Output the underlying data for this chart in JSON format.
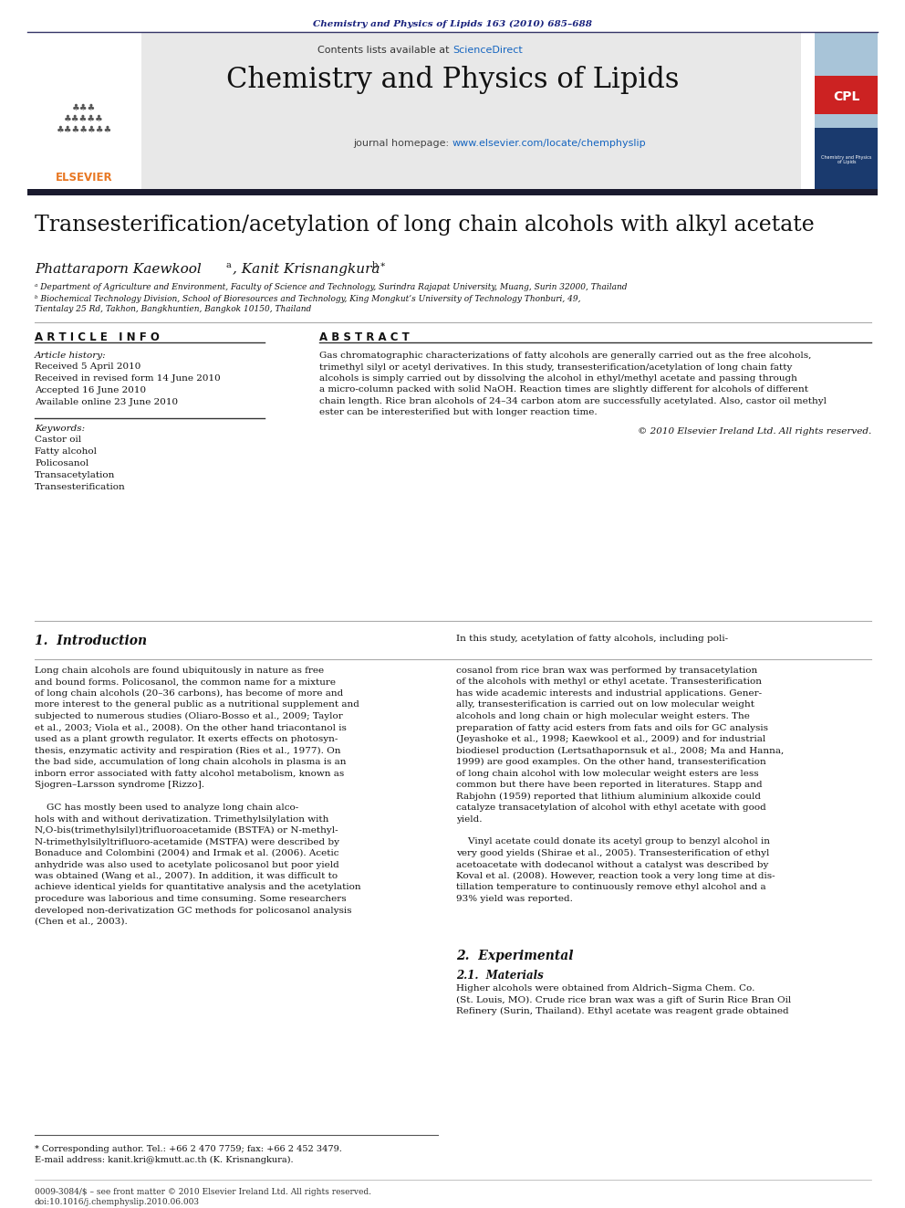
{
  "bg_color": "#ffffff",
  "page_width": 9.92,
  "page_height": 13.23,
  "journal_citation": "Chemistry and Physics of Lipids 163 (2010) 685–688",
  "journal_citation_color": "#1a237e",
  "sciencedirect_color": "#1565c0",
  "journal_name": "Chemistry and Physics of Lipids",
  "journal_url_color": "#1565c0",
  "paper_title": "Transesterification/acetylation of long chain alcohols with alkyl acetate",
  "affil_a": "ᵃ Department of Agriculture and Environment, Faculty of Science and Technology, Surindra Rajapat University, Muang, Surin 32000, Thailand",
  "affil_b": "ᵇ Biochemical Technology Division, School of Bioresources and Technology, King Mongkut’s University of Technology Thonburi, 49,",
  "affil_b2": "Tientalay 25 Rd, Takhon, Bangkhuntien, Bangkok 10150, Thailand",
  "article_info_header": "A R T I C L E   I N F O",
  "abstract_header": "A B S T R A C T",
  "article_history_label": "Article history:",
  "received": "Received 5 April 2010",
  "received_revised": "Received in revised form 14 June 2010",
  "accepted": "Accepted 16 June 2010",
  "available": "Available online 23 June 2010",
  "keywords_label": "Keywords:",
  "keywords": [
    "Castor oil",
    "Fatty alcohol",
    "Policosanol",
    "Transacetylation",
    "Transesterification"
  ],
  "copyright": "© 2010 Elsevier Ireland Ltd. All rights reserved.",
  "intro_header": "1.  Introduction",
  "abstract_lines": [
    "Gas chromatographic characterizations of fatty alcohols are generally carried out as the free alcohols,",
    "trimethyl silyl or acetyl derivatives. In this study, transesterification/acetylation of long chain fatty",
    "alcohols is simply carried out by dissolving the alcohol in ethyl/methyl acetate and passing through",
    "a micro-column packed with solid NaOH. Reaction times are slightly different for alcohols of different",
    "chain length. Rice bran alcohols of 24–34 carbon atom are successfully acetylated. Also, castor oil methyl",
    "ester can be interesterified but with longer reaction time."
  ],
  "intro_left_lines": [
    "Long chain alcohols are found ubiquitously in nature as free",
    "and bound forms. Policosanol, the common name for a mixture",
    "of long chain alcohols (20–36 carbons), has become of more and",
    "more interest to the general public as a nutritional supplement and",
    "subjected to numerous studies (Oliaro-Bosso et al., 2009; Taylor",
    "et al., 2003; Viola et al., 2008). On the other hand triacontanol is",
    "used as a plant growth regulator. It exerts effects on photosyn-",
    "thesis, enzymatic activity and respiration (Ries et al., 1977). On",
    "the bad side, accumulation of long chain alcohols in plasma is an",
    "inborn error associated with fatty alcohol metabolism, known as",
    "Sjogren–Larsson syndrome [Rizzo].",
    "",
    "    GC has mostly been used to analyze long chain alco-",
    "hols with and without derivatization. Trimethylsilylation with",
    "N,O-bis(trimethylsilyl)trifluoroacetamide (BSTFA) or N-methyl-",
    "N-trimethylsilyltrifluoro-acetamide (MSTFA) were described by",
    "Bonaduce and Colombini (2004) and Irmak et al. (2006). Acetic",
    "anhydride was also used to acetylate policosanol but poor yield",
    "was obtained (Wang et al., 2007). In addition, it was difficult to",
    "achieve identical yields for quantitative analysis and the acetylation",
    "procedure was laborious and time consuming. Some researchers",
    "developed non-derivatization GC methods for policosanol analysis",
    "(Chen et al., 2003)."
  ],
  "intro_right_line0": "In this study, acetylation of fatty alcohols, including poli-",
  "intro_right_lines": [
    "cosanol from rice bran wax was performed by transacetylation",
    "of the alcohols with methyl or ethyl acetate. Transesterification",
    "has wide academic interests and industrial applications. Gener-",
    "ally, transesterification is carried out on low molecular weight",
    "alcohols and long chain or high molecular weight esters. The",
    "preparation of fatty acid esters from fats and oils for GC analysis",
    "(Jeyashoke et al., 1998; Kaewkool et al., 2009) and for industrial",
    "biodiesel production (Lertsathapornsuk et al., 2008; Ma and Hanna,",
    "1999) are good examples. On the other hand, transesterification",
    "of long chain alcohol with low molecular weight esters are less",
    "common but there have been reported in literatures. Stapp and",
    "Rabjohn (1959) reported that lithium aluminium alkoxide could",
    "catalyze transacetylation of alcohol with ethyl acetate with good",
    "yield.",
    "",
    "    Vinyl acetate could donate its acetyl group to benzyl alcohol in",
    "very good yields (Shirae et al., 2005). Transesterification of ethyl",
    "acetoacetate with dodecanol without a catalyst was described by",
    "Koval et al. (2008). However, reaction took a very long time at dis-",
    "tillation temperature to continuously remove ethyl alcohol and a",
    "93% yield was reported."
  ],
  "section2_header": "2.  Experimental",
  "section21_header": "2.1.  Materials",
  "section21_lines": [
    "Higher alcohols were obtained from Aldrich–Sigma Chem. Co.",
    "(St. Louis, MO). Crude rice bran wax was a gift of Surin Rice Bran Oil",
    "Refinery (Surin, Thailand). Ethyl acetate was reagent grade obtained"
  ],
  "footnote_star": "* Corresponding author. Tel.: +66 2 470 7759; fax: +66 2 452 3479.",
  "footnote_email": "E-mail address: kanit.kri@kmutt.ac.th (K. Krisnangkura).",
  "bottom_issn": "0009-3084/$ – see front matter © 2010 Elsevier Ireland Ltd. All rights reserved.",
  "bottom_doi": "doi:10.1016/j.chemphyslip.2010.06.003",
  "dark_bar_color": "#1a1a2e",
  "gray_header_bg": "#e8e8e8"
}
